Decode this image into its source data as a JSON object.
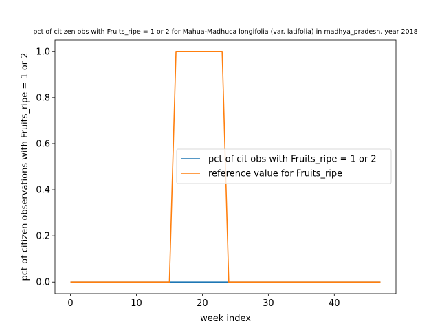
{
  "chart_data": {
    "type": "line",
    "title": "pct of citizen obs with Fruits_ripe = 1 or 2 for Mahua-Madhuca longifolia (var. latifolia) in madhya_pradesh, year 2018",
    "xlabel": "week index",
    "ylabel": "pct of citizen observations with Fruits_ripe = 1 or 2",
    "xlim": [
      -2.35,
      49.35
    ],
    "ylim": [
      -0.05,
      1.05
    ],
    "xticks": [
      0,
      10,
      20,
      30,
      40
    ],
    "yticks": [
      0.0,
      0.2,
      0.4,
      0.6,
      0.8,
      1.0
    ],
    "ytick_labels": [
      "0.0",
      "0.2",
      "0.4",
      "0.6",
      "0.8",
      "1.0"
    ],
    "grid": false,
    "legend_position": "center-right",
    "x": [
      0,
      1,
      2,
      3,
      4,
      5,
      6,
      7,
      8,
      9,
      10,
      11,
      12,
      13,
      14,
      15,
      16,
      17,
      18,
      19,
      20,
      21,
      22,
      23,
      24,
      25,
      26,
      27,
      28,
      29,
      30,
      31,
      32,
      33,
      34,
      35,
      36,
      37,
      38,
      39,
      40,
      41,
      42,
      43,
      44,
      45,
      46,
      47
    ],
    "series": [
      {
        "name": "pct of cit obs with Fruits_ripe = 1 or 2",
        "color": "#1f77b4",
        "values": [
          0,
          0,
          0,
          0,
          0,
          0,
          0,
          0,
          0,
          0,
          0,
          0,
          0,
          0,
          0,
          0,
          0,
          0,
          0,
          0,
          0,
          0,
          0,
          0,
          0,
          0,
          0,
          0,
          0,
          0,
          0,
          0,
          0,
          0,
          0,
          0,
          0,
          0,
          0,
          0,
          0,
          0,
          0,
          0,
          0,
          0,
          0,
          0
        ]
      },
      {
        "name": "reference value for Fruits_ripe",
        "color": "#ff7f0e",
        "values": [
          0,
          0,
          0,
          0,
          0,
          0,
          0,
          0,
          0,
          0,
          0,
          0,
          0,
          0,
          0,
          0,
          1,
          1,
          1,
          1,
          1,
          1,
          1,
          1,
          0,
          0,
          0,
          0,
          0,
          0,
          0,
          0,
          0,
          0,
          0,
          0,
          0,
          0,
          0,
          0,
          0,
          0,
          0,
          0,
          0,
          0,
          0,
          0
        ]
      }
    ]
  }
}
